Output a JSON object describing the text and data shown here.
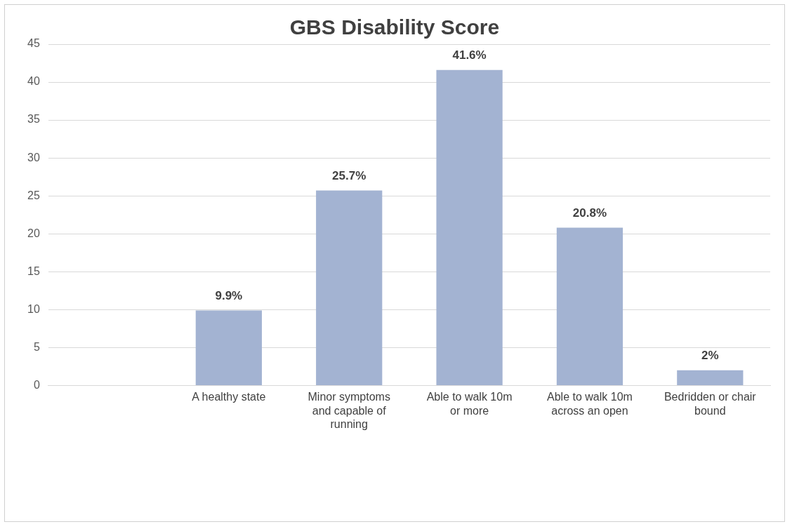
{
  "chart_data": {
    "type": "bar",
    "title": "GBS Disability Score",
    "categories": [
      null,
      "A healthy state",
      "Minor symptoms and capable of running",
      "Able to walk 10m or more",
      "Able to walk 10m across an open",
      "Bedridden or chair bound"
    ],
    "values": [
      null,
      9.9,
      25.7,
      41.6,
      20.8,
      2
    ],
    "value_labels": [
      null,
      "9.9%",
      "25.7%",
      "41.6%",
      "20.8%",
      "2%"
    ],
    "color": "#a3b3d2",
    "ylim": [
      0,
      45
    ],
    "yticks": [
      0,
      5,
      10,
      15,
      20,
      25,
      30,
      35,
      40,
      45
    ],
    "grid": "y",
    "legend": false
  }
}
